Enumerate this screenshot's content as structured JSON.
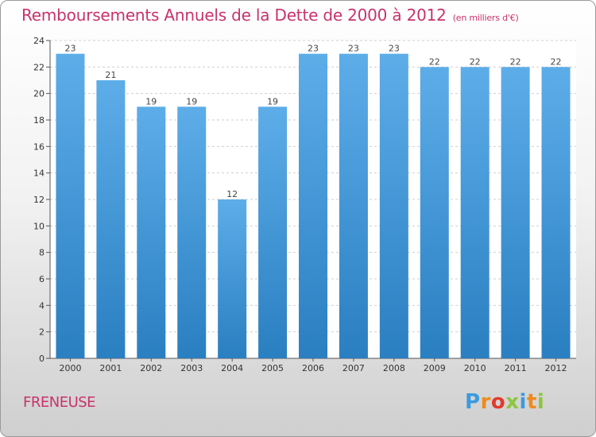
{
  "chart_data": {
    "type": "bar",
    "title": "Remboursements Annuels de la Dette de 2000 à 2012",
    "subtitle": "(en milliers d'€)",
    "categories": [
      "2000",
      "2001",
      "2002",
      "2003",
      "2004",
      "2005",
      "2006",
      "2007",
      "2008",
      "2009",
      "2010",
      "2011",
      "2012"
    ],
    "values": [
      23,
      21,
      19,
      19,
      12,
      19,
      23,
      23,
      23,
      22,
      22,
      22,
      22
    ],
    "ylim": [
      0,
      24
    ],
    "yticks": [
      0,
      2,
      4,
      6,
      8,
      10,
      12,
      14,
      16,
      18,
      20,
      22,
      24
    ],
    "grid": true,
    "bar_color_light": "#5dade9",
    "bar_color_dark": "#2a7fc1"
  },
  "commune": "FRENEUSE",
  "logo": {
    "letters": [
      "P",
      "r",
      "o",
      "x",
      "i",
      "t",
      "i"
    ],
    "colors": [
      "#3a9be0",
      "#f08a1e",
      "#e23a2e",
      "#8cc63f",
      "#3a9be0",
      "#f08a1e",
      "#8cc63f"
    ]
  }
}
